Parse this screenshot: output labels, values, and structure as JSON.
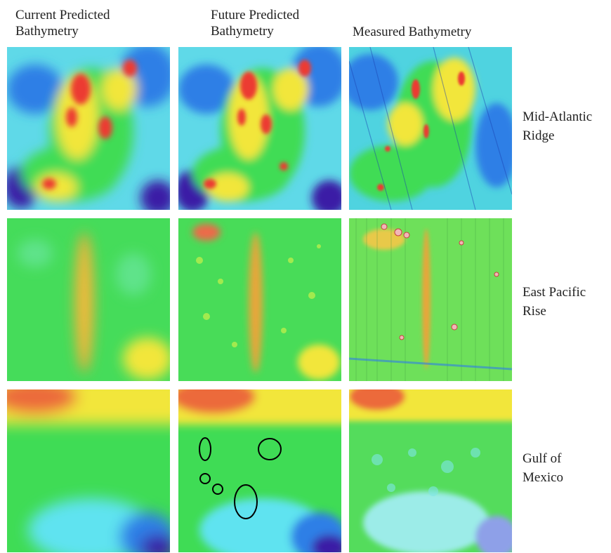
{
  "columns": {
    "current": "Current Predicted\nBathymetry",
    "future": "Future Predicted\nBathymetry",
    "measured": "Measured Bathymetry"
  },
  "rows": {
    "mar": "Mid-Atlantic\nRidge",
    "epr": "East Pacific\nRise",
    "gom": "Gulf of\nMexico"
  },
  "colors": {
    "deep": "#3b1fa6",
    "blue": "#2f7fe6",
    "cyan": "#5fe3f0",
    "green": "#3fdc55",
    "yellow": "#f2e63a",
    "red": "#ec3b32"
  }
}
